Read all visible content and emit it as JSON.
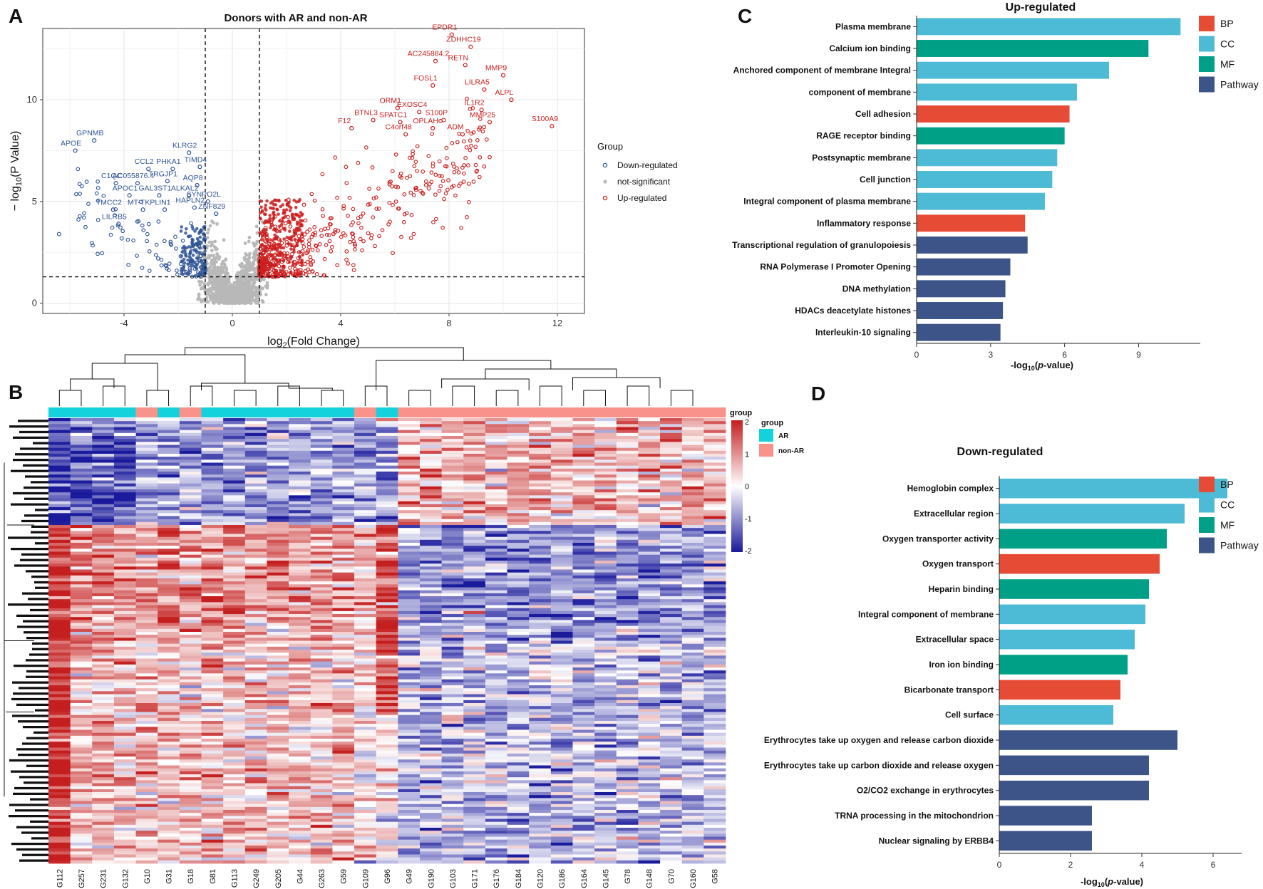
{
  "panels": {
    "a": "A",
    "b": "B",
    "c": "C",
    "d": "D"
  },
  "colors": {
    "down": "#2f5597",
    "up": "#cc1f1f",
    "ns": "#b8b8b8",
    "BP": "#e64b35",
    "CC": "#4dbbd5",
    "MF": "#00a087",
    "Pathway": "#3c5488",
    "AR": "#14d2dc",
    "nonAR": "#f8928a",
    "hmLow": "#1a1a9c",
    "hmMid": "#ffffff",
    "hmHigh": "#c41e1e"
  },
  "volcano": {
    "title": "Donors with AR and non-AR",
    "xlabel_main": "log",
    "xlabel_sub": "2",
    "xlabel_tail": "(Fold Change)",
    "ylabel_pre": "− log",
    "ylabel_sub": "10",
    "ylabel_tail": "(P Value)",
    "legend_title": "Group",
    "legend": [
      "Down-regulated",
      "not-significant",
      "Up-regulated"
    ]
  },
  "chart_data": [
    {
      "type": "scatter",
      "title": "Donors with AR and non-AR",
      "xlabel": "log2(Fold Change)",
      "ylabel": "-log10(P Value)",
      "xlim": [
        -7,
        13
      ],
      "ylim": [
        -0.5,
        13.5
      ],
      "xticks": [
        -4,
        0,
        4,
        8,
        12
      ],
      "xtick_labels": [
        "-4",
        "0",
        "4",
        "8",
        "12"
      ],
      "yticks": [
        0,
        5,
        10
      ],
      "ytick_labels": [
        "0",
        "5",
        "10"
      ],
      "thresholds": {
        "log2fc": [
          -1,
          1
        ],
        "neg_log10_p": 1.3
      },
      "labeled_genes": [
        {
          "name": "EPDR1",
          "x": 8.1,
          "y": 13.2,
          "group": "up"
        },
        {
          "name": "ZDHHC19",
          "x": 8.8,
          "y": 12.6,
          "group": "up"
        },
        {
          "name": "AC245884.2",
          "x": 7.5,
          "y": 11.9,
          "group": "up"
        },
        {
          "name": "RETN",
          "x": 8.6,
          "y": 11.7,
          "group": "up"
        },
        {
          "name": "MMP9",
          "x": 10.0,
          "y": 11.2,
          "group": "up"
        },
        {
          "name": "FOSL1",
          "x": 7.4,
          "y": 10.7,
          "group": "up"
        },
        {
          "name": "LILRA5",
          "x": 9.3,
          "y": 10.5,
          "group": "up"
        },
        {
          "name": "ORM1",
          "x": 6.1,
          "y": 9.6,
          "group": "up"
        },
        {
          "name": "EXOSC4",
          "x": 6.9,
          "y": 9.4,
          "group": "up"
        },
        {
          "name": "IL1R2",
          "x": 9.2,
          "y": 9.5,
          "group": "up"
        },
        {
          "name": "ALPL",
          "x": 10.3,
          "y": 10.0,
          "group": "up"
        },
        {
          "name": "BTNL3",
          "x": 5.2,
          "y": 9.0,
          "group": "up"
        },
        {
          "name": "SPATC1",
          "x": 6.2,
          "y": 8.9,
          "group": "up"
        },
        {
          "name": "S100P",
          "x": 7.8,
          "y": 9.0,
          "group": "up"
        },
        {
          "name": "MMP25",
          "x": 9.5,
          "y": 8.9,
          "group": "up"
        },
        {
          "name": "S100A9",
          "x": 11.8,
          "y": 8.7,
          "group": "up"
        },
        {
          "name": "OPLAH",
          "x": 7.4,
          "y": 8.6,
          "group": "up"
        },
        {
          "name": "F12",
          "x": 4.4,
          "y": 8.6,
          "group": "up"
        },
        {
          "name": "C4orf48",
          "x": 6.4,
          "y": 8.3,
          "group": "up"
        },
        {
          "name": "ADM",
          "x": 8.5,
          "y": 8.3,
          "group": "up"
        },
        {
          "name": "GPNMB",
          "x": -5.1,
          "y": 8.0,
          "group": "down"
        },
        {
          "name": "APOE",
          "x": -5.8,
          "y": 7.5,
          "group": "down"
        },
        {
          "name": "KLRG2",
          "x": -1.6,
          "y": 7.4,
          "group": "down"
        },
        {
          "name": "CCL2",
          "x": -3.1,
          "y": 6.6,
          "group": "down"
        },
        {
          "name": "PHKA1",
          "x": -2.2,
          "y": 6.6,
          "group": "down"
        },
        {
          "name": "TIMD4",
          "x": -1.2,
          "y": 6.7,
          "group": "down"
        },
        {
          "name": "C1QC",
          "x": -4.3,
          "y": 5.9,
          "group": "down"
        },
        {
          "name": "AC055876.4",
          "x": -3.5,
          "y": 5.9,
          "group": "down"
        },
        {
          "name": "TRGJP1",
          "x": -2.4,
          "y": 6.0,
          "group": "down"
        },
        {
          "name": "AQP8",
          "x": -1.3,
          "y": 5.8,
          "group": "down"
        },
        {
          "name": "APOC1",
          "x": -3.8,
          "y": 5.3,
          "group": "down"
        },
        {
          "name": "GAL3ST1",
          "x": -2.7,
          "y": 5.3,
          "group": "down"
        },
        {
          "name": "ALKAL2",
          "x": -1.6,
          "y": 5.3,
          "group": "down"
        },
        {
          "name": "SYNPO2L",
          "x": -0.9,
          "y": 5.0,
          "group": "down"
        },
        {
          "name": "TMCC2",
          "x": -4.4,
          "y": 4.6,
          "group": "down"
        },
        {
          "name": "MT-TK",
          "x": -3.3,
          "y": 4.6,
          "group": "down"
        },
        {
          "name": "PLIN1",
          "x": -2.5,
          "y": 4.6,
          "group": "down"
        },
        {
          "name": "HAPLN2",
          "x": -1.4,
          "y": 4.7,
          "group": "down"
        },
        {
          "name": "ZNF829",
          "x": -0.6,
          "y": 4.4,
          "group": "down"
        },
        {
          "name": "LILRB5",
          "x": -4.2,
          "y": 3.9,
          "group": "down"
        }
      ],
      "extra_points": [
        {
          "x": -6.4,
          "y": 3.4,
          "group": "down"
        }
      ],
      "legend": {
        "title": "Group",
        "entries": [
          "Down-regulated",
          "not-significant",
          "Up-regulated"
        ],
        "position": "right"
      }
    },
    {
      "type": "heatmap",
      "title": "",
      "columns": [
        "G112",
        "G257",
        "G231",
        "G132",
        "G10",
        "G31",
        "G18",
        "G81",
        "G113",
        "G249",
        "G205",
        "G44",
        "G263",
        "G59",
        "G109",
        "G96",
        "G49",
        "G190",
        "G103",
        "G171",
        "G176",
        "G184",
        "G120",
        "G186",
        "G164",
        "G145",
        "G78",
        "G148",
        "G70",
        "G160",
        "G58"
      ],
      "column_groups": [
        "AR",
        "AR",
        "AR",
        "AR",
        "non-AR",
        "AR",
        "non-AR",
        "AR",
        "AR",
        "AR",
        "AR",
        "AR",
        "AR",
        "AR",
        "non-AR",
        "AR",
        "non-AR",
        "non-AR",
        "non-AR",
        "non-AR",
        "non-AR",
        "non-AR",
        "non-AR",
        "non-AR",
        "non-AR",
        "non-AR",
        "non-AR",
        "non-AR",
        "non-AR",
        "non-AR",
        "non-AR"
      ],
      "legend_group_title": "group",
      "legend_groups": [
        "AR",
        "non-AR"
      ],
      "colorbar_title": "group",
      "colorbar_range": [
        -2,
        2
      ],
      "colorbar_ticks": [
        "2",
        "1",
        "0",
        "-1",
        "-2"
      ]
    },
    {
      "type": "bar",
      "orientation": "horizontal",
      "title": "Up-regulated",
      "xlabel": "-log10(p-value)",
      "xlim": [
        0,
        11.5
      ],
      "xticks": [
        "0",
        "3",
        "6",
        "9"
      ],
      "categories": [
        "Plasma membrane",
        "Calcium ion binding",
        "Anchored component of membrane Integral",
        "component of membrane",
        "Cell adhesion",
        "RAGE receptor binding",
        "Postsynaptic membrane",
        "Cell junction",
        "Integral component of plasma membrane",
        "Inflammatory response",
        "Transcriptional regulation of granulopoiesis",
        "RNA Polymerase I Promoter Opening",
        "DNA methylation",
        "HDACs deacetylate histones",
        "Interleukin-10 signaling"
      ],
      "values": [
        10.7,
        9.4,
        7.8,
        6.5,
        6.2,
        6.0,
        5.7,
        5.5,
        5.2,
        4.4,
        4.5,
        3.8,
        3.6,
        3.5,
        3.4
      ],
      "categories_type": [
        "CC",
        "MF",
        "CC",
        "CC",
        "BP",
        "MF",
        "CC",
        "CC",
        "CC",
        "BP",
        "Pathway",
        "Pathway",
        "Pathway",
        "Pathway",
        "Pathway"
      ],
      "legend": {
        "entries": [
          "BP",
          "CC",
          "MF",
          "Pathway"
        ],
        "position": "right"
      }
    },
    {
      "type": "bar",
      "orientation": "horizontal",
      "title": "Down-regulated",
      "xlabel": "-log10(p-value)",
      "xlim": [
        0,
        6.8
      ],
      "xticks": [
        "0",
        "2",
        "4",
        "6"
      ],
      "categories": [
        "Hemoglobin complex",
        "Extracellular region",
        "Oxygen transporter activity",
        "Oxygen transport",
        "Heparin binding",
        "Integral component of membrane",
        "Extracellular space",
        "Iron ion binding",
        "Bicarbonate transport",
        "Cell surface",
        "Erythrocytes take up oxygen and release carbon dioxide",
        "Erythrocytes take up carbon dioxide and release oxygen",
        "O2/CO2 exchange in erythrocytes",
        "TRNA processing in the mitochondrion",
        "Nuclear signaling by ERBB4"
      ],
      "values": [
        6.4,
        5.2,
        4.7,
        4.5,
        4.2,
        4.1,
        3.8,
        3.6,
        3.4,
        3.2,
        5.0,
        4.2,
        4.2,
        2.6,
        2.6
      ],
      "categories_type": [
        "CC",
        "CC",
        "MF",
        "BP",
        "MF",
        "CC",
        "CC",
        "MF",
        "BP",
        "CC",
        "Pathway",
        "Pathway",
        "Pathway",
        "Pathway",
        "Pathway"
      ],
      "legend": {
        "entries": [
          "BP",
          "CC",
          "MF",
          "Pathway"
        ],
        "position": "right"
      }
    }
  ]
}
